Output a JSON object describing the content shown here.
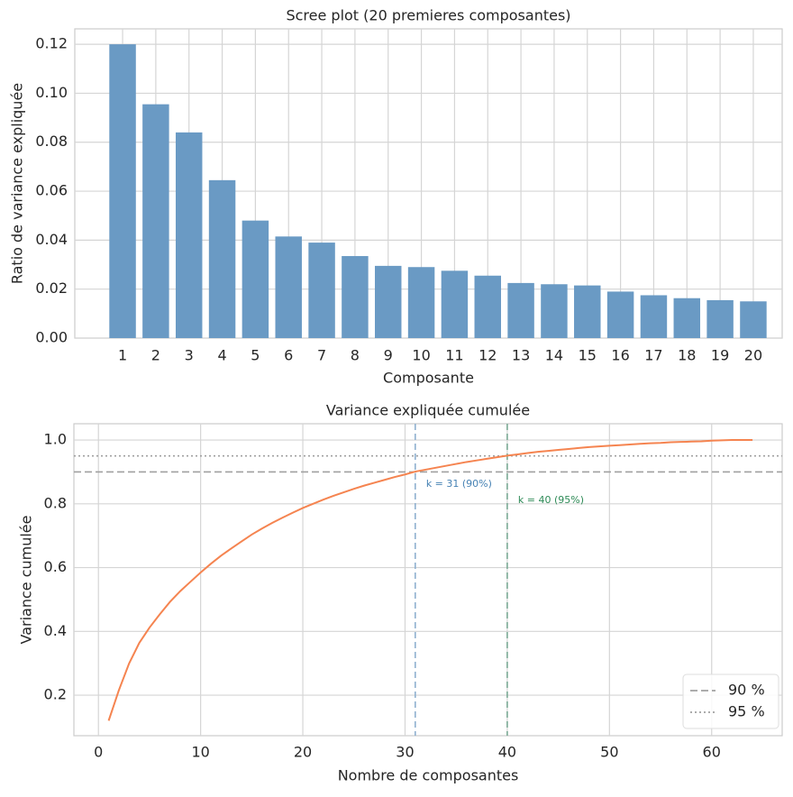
{
  "chart_data": [
    {
      "type": "bar",
      "title": "Scree plot (20 premieres composantes)",
      "xlabel": "Composante",
      "ylabel": "Ratio de variance expliquée",
      "categories": [
        "1",
        "2",
        "3",
        "4",
        "5",
        "6",
        "7",
        "8",
        "9",
        "10",
        "11",
        "12",
        "13",
        "14",
        "15",
        "16",
        "17",
        "18",
        "19",
        "20"
      ],
      "values": [
        0.12,
        0.0955,
        0.084,
        0.0645,
        0.048,
        0.0415,
        0.039,
        0.0335,
        0.0295,
        0.029,
        0.0275,
        0.0255,
        0.0225,
        0.022,
        0.0215,
        0.019,
        0.0175,
        0.0163,
        0.0155,
        0.015
      ],
      "color": "#6a9ac4",
      "ylim": [
        0,
        0.1263
      ],
      "yticks": [
        {
          "value": 0,
          "label": "0.00"
        },
        {
          "value": 0.02,
          "label": "0.02"
        },
        {
          "value": 0.04,
          "label": "0.04"
        },
        {
          "value": 0.06,
          "label": "0.06"
        },
        {
          "value": 0.08,
          "label": "0.08"
        },
        {
          "value": 0.1,
          "label": "0.10"
        },
        {
          "value": 0.12,
          "label": "0.12"
        }
      ],
      "grid": true
    },
    {
      "type": "line",
      "title": "Variance expliquée cumulée",
      "xlabel": "Nombre de composantes",
      "ylabel": "Variance cumulée",
      "x": [
        1,
        2,
        3,
        4,
        5,
        6,
        7,
        8,
        9,
        10,
        11,
        12,
        13,
        14,
        15,
        16,
        17,
        18,
        19,
        20,
        21,
        22,
        23,
        24,
        25,
        26,
        27,
        28,
        29,
        30,
        31,
        32,
        33,
        34,
        35,
        36,
        37,
        38,
        39,
        40,
        41,
        42,
        43,
        44,
        45,
        46,
        47,
        48,
        49,
        50,
        51,
        52,
        53,
        54,
        55,
        56,
        57,
        58,
        59,
        60,
        61,
        62,
        63,
        64
      ],
      "values": [
        0.12,
        0.2155,
        0.2995,
        0.364,
        0.412,
        0.4535,
        0.4925,
        0.526,
        0.5555,
        0.5845,
        0.612,
        0.6375,
        0.66,
        0.682,
        0.7035,
        0.7225,
        0.74,
        0.7563,
        0.7718,
        0.7868,
        0.8,
        0.813,
        0.825,
        0.836,
        0.847,
        0.857,
        0.866,
        0.875,
        0.884,
        0.892,
        0.901,
        0.907,
        0.913,
        0.919,
        0.925,
        0.931,
        0.936,
        0.941,
        0.946,
        0.951,
        0.955,
        0.959,
        0.963,
        0.966,
        0.969,
        0.972,
        0.975,
        0.978,
        0.98,
        0.982,
        0.984,
        0.986,
        0.988,
        0.99,
        0.991,
        0.993,
        0.994,
        0.995,
        0.996,
        0.998,
        0.999,
        1.0,
        1.0,
        1.0
      ],
      "color": "#f58450",
      "xlim": [
        -2.4,
        66.9
      ],
      "ylim": [
        0.073,
        1.051
      ],
      "xticks": [
        0,
        10,
        20,
        30,
        40,
        50,
        60
      ],
      "yticks": [
        0.2,
        0.4,
        0.6,
        0.8,
        {
          "value": 1,
          "label": "1.0"
        }
      ],
      "hlines": [
        {
          "y": 0.9,
          "name": "90 %",
          "style": "dashed",
          "color": "#a0a0a0"
        },
        {
          "y": 0.95,
          "name": "95 %",
          "style": "dotted",
          "color": "#a0a0a0"
        }
      ],
      "vlines": [
        {
          "x": 31,
          "label": "k = 31 (90%)",
          "color": "#8fb0d0",
          "label_color": "#4682b4"
        },
        {
          "x": 40,
          "label": "k = 40 (95%)",
          "color": "#7aaa95",
          "label_color": "#2e8b57"
        }
      ],
      "legend": "lower right",
      "grid": true
    }
  ]
}
